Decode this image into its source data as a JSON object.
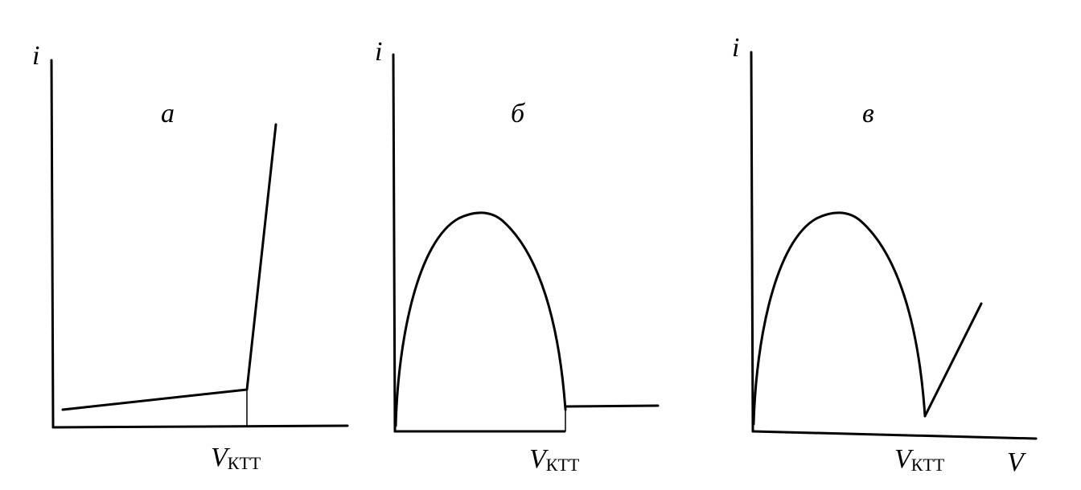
{
  "panels": [
    {
      "y_label": "i",
      "letter": "а",
      "x_mark": {
        "symbol": "V",
        "subscript": "КТТ"
      }
    },
    {
      "y_label": "i",
      "letter": "б",
      "x_mark": {
        "symbol": "V",
        "subscript": "КТТ"
      }
    },
    {
      "y_label": "i",
      "letter": "в",
      "x_mark": {
        "symbol": "V",
        "subscript": "КТТ"
      }
    }
  ],
  "x_label": "V"
}
